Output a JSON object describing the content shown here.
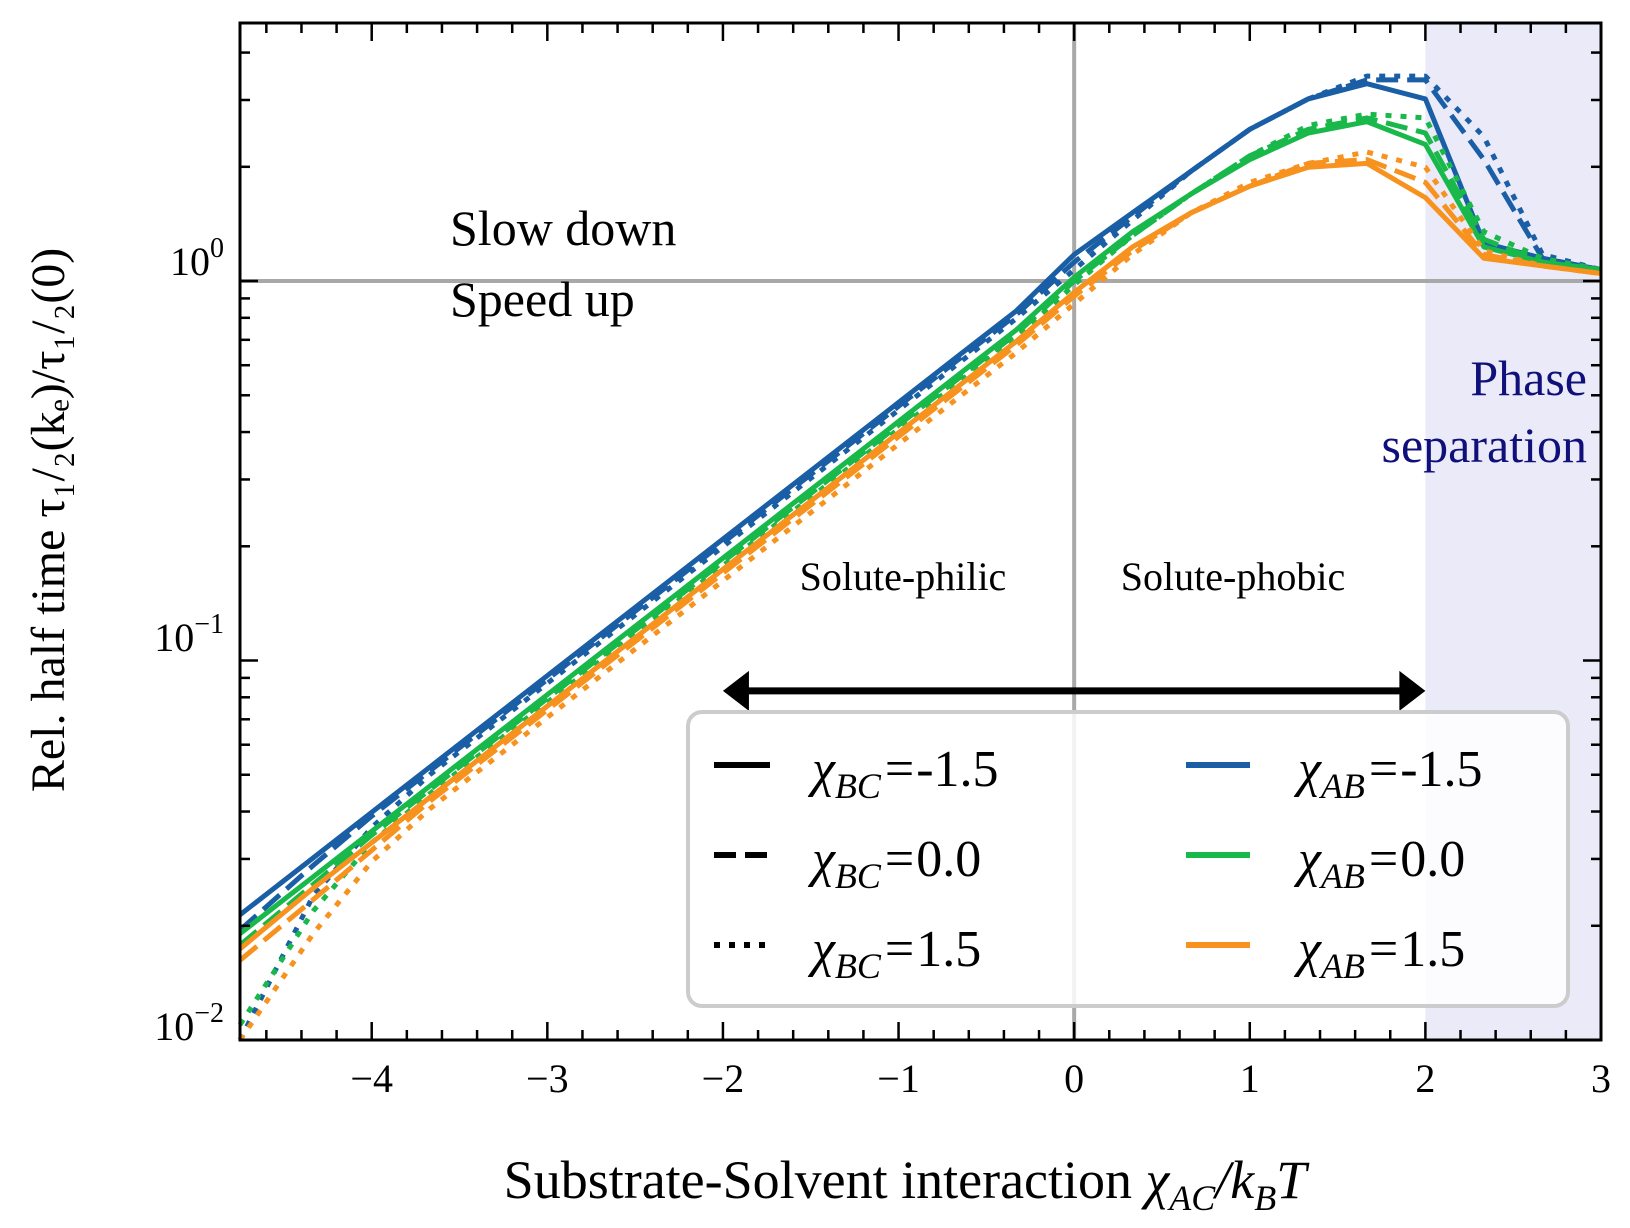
{
  "chart_data": {
    "type": "line",
    "title": "",
    "xlabel": {
      "main": "Substrate-Solvent interaction ",
      "sym": "χ",
      "sub1": "AC",
      "slash": "/k",
      "sub2": "B",
      "tail": "T"
    },
    "ylabel": {
      "text": "Rel. half time τ₁/₂(kₑ)/τ₁/₂(0)"
    },
    "x_range": [
      -4.75,
      3.0
    ],
    "y_range_log10": [
      -2,
      0.68
    ],
    "y_scale": "log",
    "x_ticks": [
      -4,
      -3,
      -2,
      -1,
      0,
      1,
      2,
      3
    ],
    "x_tick_labels": [
      "−4",
      "−3",
      "−2",
      "−1",
      "0",
      "1",
      "2",
      "3"
    ],
    "y_ticks": [
      {
        "exp": -2,
        "base": "10",
        "sup": "−2"
      },
      {
        "exp": -1,
        "base": "10",
        "sup": "−1"
      },
      {
        "exp": 0,
        "base": "10",
        "sup": "0"
      }
    ],
    "reference_lines": {
      "x": 0,
      "y_log10": 0
    },
    "phase_region": {
      "x_start": 2.0,
      "x_end": 3.0,
      "label_line1": "Phase",
      "label_line2": "separation",
      "color": "#eaeaf8",
      "label_color": "#10107a"
    },
    "annotations": {
      "slow_down": "Slow down",
      "speed_up": "Speed up",
      "solute_philic": "Solute-philic",
      "solute_phobic": "Solute-phobic",
      "arrow": {
        "x_from": -2.0,
        "x_to": 2.0,
        "y_log10": -1.08
      }
    },
    "colors": {
      "chi_AB_-1.5": "#1a5fa6",
      "chi_AB_0.0": "#19b84a",
      "chi_AB_1.5": "#f7921e",
      "axis": "#000000",
      "refline": "#a8a8a8"
    },
    "legend": {
      "placement": "lower-right",
      "left_entries": [
        {
          "sym": "χ",
          "sub": "BC",
          "eq": "=",
          "val": "-1.5",
          "style": "solid"
        },
        {
          "sym": "χ",
          "sub": "BC",
          "eq": "=",
          "val": "0.0",
          "style": "dashed"
        },
        {
          "sym": "χ",
          "sub": "BC",
          "eq": "=",
          "val": "1.5",
          "style": "dotted"
        }
      ],
      "right_entries": [
        {
          "sym": "χ",
          "sub": "AB",
          "eq": "=",
          "val": "-1.5",
          "color": "#1a5fa6"
        },
        {
          "sym": "χ",
          "sub": "AB",
          "eq": "=",
          "val": "0.0",
          "color": "#19b84a"
        },
        {
          "sym": "χ",
          "sub": "AB",
          "eq": "=",
          "val": "1.5",
          "color": "#f7921e"
        }
      ]
    },
    "x": [
      -4.75,
      -4.333,
      -4.0,
      -3.667,
      -3.333,
      -3.0,
      -2.667,
      -2.333,
      -2.0,
      -1.667,
      -1.333,
      -1.0,
      -0.667,
      -0.333,
      0.0,
      0.333,
      0.667,
      1.0,
      1.333,
      1.667,
      2.0,
      2.333,
      2.667,
      3.0
    ],
    "series": [
      {
        "name": "χAB=-1.5, χBC=-1.5",
        "chi_AB": "-1.5",
        "chi_BC": "-1.5",
        "color": "#1a5fa6",
        "style": "solid",
        "log10_values": [
          -1.67,
          -1.52,
          -1.4,
          -1.28,
          -1.16,
          -1.04,
          -0.92,
          -0.8,
          -0.68,
          -0.56,
          -0.44,
          -0.32,
          -0.2,
          -0.08,
          0.07,
          0.18,
          0.29,
          0.4,
          0.48,
          0.52,
          0.48,
          0.1,
          0.06,
          0.03
        ]
      },
      {
        "name": "χAB=-1.5, χBC=0.0",
        "chi_AB": "-1.5",
        "chi_BC": "0.0",
        "color": "#1a5fa6",
        "style": "dashed",
        "log10_values": [
          -1.71,
          -1.54,
          -1.41,
          -1.29,
          -1.17,
          -1.05,
          -0.93,
          -0.81,
          -0.69,
          -0.57,
          -0.45,
          -0.33,
          -0.21,
          -0.09,
          0.05,
          0.17,
          0.29,
          0.4,
          0.48,
          0.53,
          0.53,
          0.32,
          0.06,
          0.03
        ]
      },
      {
        "name": "χAB=-1.5, χBC=1.5",
        "chi_AB": "-1.5",
        "chi_BC": "1.5",
        "color": "#1a5fa6",
        "style": "dotted",
        "log10_values": [
          -2.0,
          -1.62,
          -1.44,
          -1.3,
          -1.18,
          -1.06,
          -0.94,
          -0.82,
          -0.7,
          -0.58,
          -0.46,
          -0.34,
          -0.22,
          -0.1,
          0.03,
          0.16,
          0.29,
          0.4,
          0.48,
          0.54,
          0.54,
          0.38,
          0.07,
          0.03
        ]
      },
      {
        "name": "χAB=0.0, χBC=-1.5",
        "chi_AB": "0.0",
        "chi_BC": "-1.5",
        "color": "#19b84a",
        "style": "solid",
        "log10_values": [
          -1.72,
          -1.57,
          -1.45,
          -1.33,
          -1.21,
          -1.09,
          -0.97,
          -0.85,
          -0.73,
          -0.61,
          -0.49,
          -0.37,
          -0.25,
          -0.13,
          0.01,
          0.13,
          0.23,
          0.32,
          0.39,
          0.42,
          0.36,
          0.09,
          0.05,
          0.03
        ]
      },
      {
        "name": "χAB=0.0, χBC=0.0",
        "chi_AB": "0.0",
        "chi_BC": "0.0",
        "color": "#19b84a",
        "style": "dashed",
        "log10_values": [
          -1.75,
          -1.59,
          -1.46,
          -1.34,
          -1.22,
          -1.1,
          -0.98,
          -0.86,
          -0.74,
          -0.62,
          -0.5,
          -0.38,
          -0.26,
          -0.14,
          0.0,
          0.12,
          0.23,
          0.33,
          0.4,
          0.43,
          0.39,
          0.11,
          0.05,
          0.03
        ]
      },
      {
        "name": "χAB=0.0, χBC=1.5",
        "chi_AB": "0.0",
        "chi_BC": "1.5",
        "color": "#19b84a",
        "style": "dotted",
        "log10_values": [
          -1.96,
          -1.66,
          -1.48,
          -1.35,
          -1.23,
          -1.11,
          -0.99,
          -0.87,
          -0.75,
          -0.63,
          -0.51,
          -0.39,
          -0.27,
          -0.15,
          -0.01,
          0.12,
          0.23,
          0.33,
          0.41,
          0.44,
          0.43,
          0.13,
          0.06,
          0.03
        ]
      },
      {
        "name": "χAB=1.5, χBC=-1.5",
        "chi_AB": "1.5",
        "chi_BC": "-1.5",
        "color": "#f7921e",
        "style": "solid",
        "log10_values": [
          -1.76,
          -1.6,
          -1.48,
          -1.36,
          -1.24,
          -1.12,
          -1.0,
          -0.88,
          -0.76,
          -0.64,
          -0.52,
          -0.4,
          -0.28,
          -0.16,
          -0.03,
          0.09,
          0.18,
          0.25,
          0.3,
          0.31,
          0.22,
          0.06,
          0.04,
          0.02
        ]
      },
      {
        "name": "χAB=1.5, χBC=0.0",
        "chi_AB": "1.5",
        "chi_BC": "0.0",
        "color": "#f7921e",
        "style": "dashed",
        "log10_values": [
          -1.79,
          -1.63,
          -1.5,
          -1.37,
          -1.25,
          -1.13,
          -1.01,
          -0.89,
          -0.77,
          -0.65,
          -0.53,
          -0.41,
          -0.29,
          -0.17,
          -0.04,
          0.08,
          0.18,
          0.25,
          0.31,
          0.32,
          0.26,
          0.07,
          0.04,
          0.02
        ]
      },
      {
        "name": "χAB=1.5, χBC=1.5",
        "chi_AB": "1.5",
        "chi_BC": "1.5",
        "color": "#f7921e",
        "style": "dotted",
        "log10_values": [
          -2.0,
          -1.72,
          -1.53,
          -1.39,
          -1.27,
          -1.15,
          -1.03,
          -0.91,
          -0.79,
          -0.67,
          -0.55,
          -0.43,
          -0.31,
          -0.19,
          -0.06,
          0.07,
          0.18,
          0.26,
          0.31,
          0.34,
          0.3,
          0.08,
          0.04,
          0.02
        ]
      }
    ]
  }
}
